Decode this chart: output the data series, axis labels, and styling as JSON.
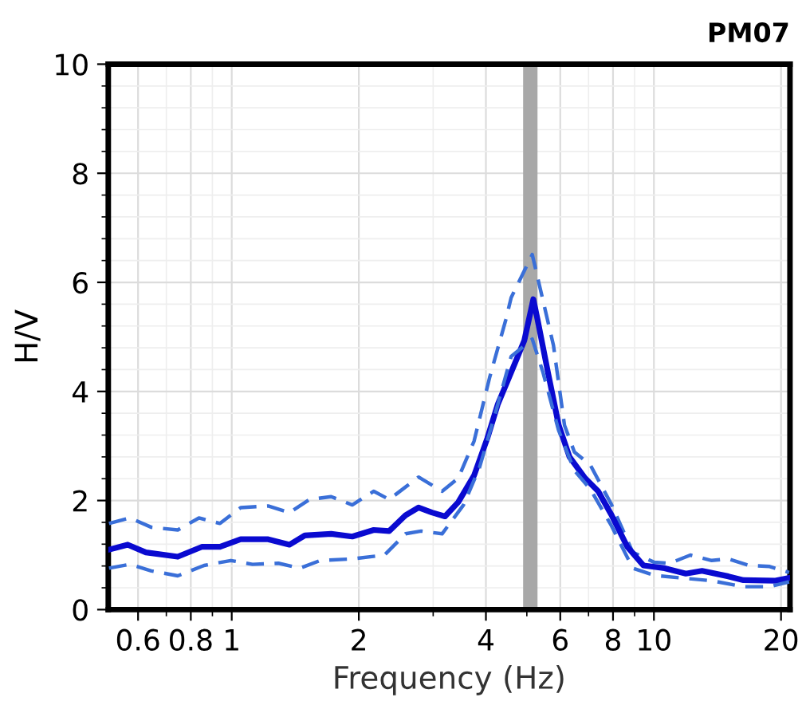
{
  "chart_data": {
    "type": "line",
    "title": "PM07",
    "xlabel": "Frequency (Hz)",
    "ylabel": "H/V",
    "log": "x",
    "grid": true,
    "legend": false,
    "xlim": [
      0.51,
      21
    ],
    "xticks": [
      0.6,
      0.8,
      1,
      2,
      4,
      6,
      8,
      10,
      20
    ],
    "ylim": [
      0,
      10
    ],
    "yticks": [
      0,
      2,
      4,
      6,
      8,
      10
    ],
    "bands": [
      {
        "axis": "x",
        "from": 4.9,
        "to": 5.3,
        "color": "#a8a8a8"
      }
    ],
    "series": [
      {
        "color": "#3a6fd8",
        "line_style": "dashed",
        "x": [
          0.512,
          0.574,
          0.645,
          0.745,
          0.836,
          0.938,
          1.05,
          1.22,
          1.37,
          1.53,
          1.72,
          1.93,
          2.17,
          2.36,
          2.77,
          3.15,
          3.44,
          3.75,
          4.08,
          4.46,
          4.59,
          5.15,
          5.78,
          6.14,
          6.48,
          7.07,
          7.94,
          8.91,
          10.0,
          10.9,
          12.2,
          13.7,
          15.0,
          16.8,
          18.8,
          20.9
        ],
        "values": [
          1.58,
          1.68,
          1.51,
          1.46,
          1.68,
          1.58,
          1.87,
          1.9,
          1.78,
          2.02,
          2.07,
          1.92,
          2.17,
          2.02,
          2.43,
          2.17,
          2.41,
          3.09,
          4.25,
          5.32,
          5.72,
          6.51,
          4.85,
          3.38,
          2.89,
          2.65,
          1.92,
          1.05,
          0.87,
          0.85,
          1.0,
          0.9,
          0.93,
          0.81,
          0.79,
          0.68
        ]
      },
      {
        "color": "#0a0ad0",
        "line_style": "solid",
        "x": [
          0.512,
          0.567,
          0.626,
          0.745,
          0.849,
          0.938,
          1.05,
          1.22,
          1.37,
          1.49,
          1.72,
          1.93,
          2.17,
          2.36,
          2.58,
          2.77,
          2.98,
          3.2,
          3.44,
          3.75,
          4.03,
          4.27,
          4.59,
          4.93,
          5.18,
          5.3,
          5.61,
          5.95,
          6.31,
          6.87,
          7.38,
          7.94,
          8.65,
          9.44,
          10.6,
          11.9,
          13.0,
          15.0,
          16.3,
          19.4,
          20.9
        ],
        "values": [
          1.1,
          1.19,
          1.05,
          0.97,
          1.15,
          1.15,
          1.29,
          1.29,
          1.19,
          1.36,
          1.39,
          1.34,
          1.46,
          1.44,
          1.73,
          1.87,
          1.78,
          1.71,
          1.97,
          2.46,
          3.14,
          3.77,
          4.35,
          4.93,
          5.69,
          5.32,
          4.35,
          3.38,
          2.8,
          2.41,
          2.17,
          1.73,
          1.15,
          0.81,
          0.76,
          0.66,
          0.71,
          0.61,
          0.54,
          0.53,
          0.58
        ]
      },
      {
        "color": "#3a6fd8",
        "line_style": "dashed",
        "x": [
          0.512,
          0.574,
          0.645,
          0.745,
          0.86,
          0.995,
          1.12,
          1.29,
          1.45,
          1.62,
          1.93,
          2.3,
          2.58,
          2.81,
          3.15,
          3.54,
          3.86,
          4.2,
          4.59,
          5.15,
          5.46,
          5.95,
          6.48,
          7.07,
          7.94,
          8.91,
          10.0,
          11.6,
          13.7,
          16.3,
          18.8,
          20.9
        ],
        "values": [
          0.76,
          0.83,
          0.71,
          0.62,
          0.81,
          0.9,
          0.83,
          0.85,
          0.76,
          0.9,
          0.93,
          1.0,
          1.39,
          1.44,
          1.39,
          1.92,
          2.6,
          3.57,
          4.64,
          4.96,
          4.35,
          3.28,
          2.55,
          2.21,
          1.53,
          0.76,
          0.63,
          0.58,
          0.53,
          0.42,
          0.42,
          0.51
        ]
      }
    ]
  }
}
